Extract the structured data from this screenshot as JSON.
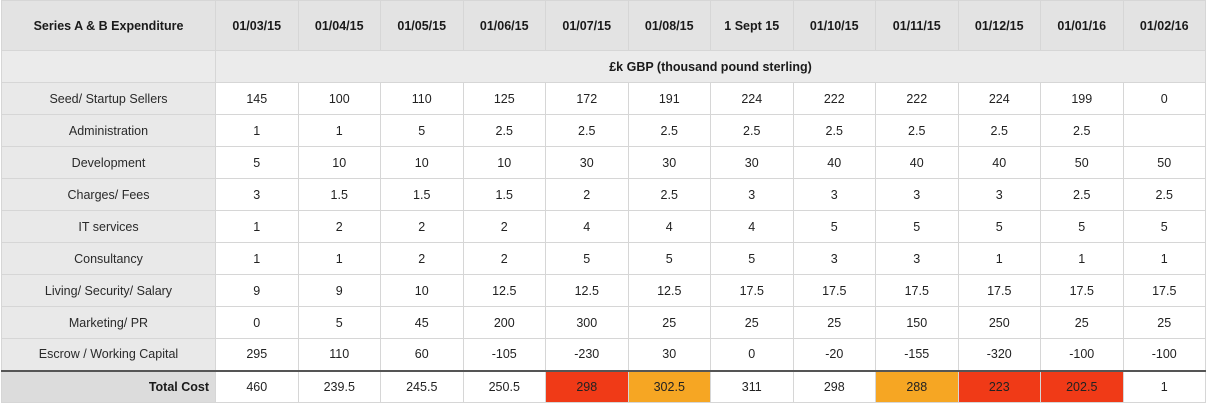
{
  "header": {
    "corner_label": "Series A & B Expenditure",
    "dates": [
      "01/03/15",
      "01/04/15",
      "01/05/15",
      "01/06/15",
      "01/07/15",
      "01/08/15",
      "1 Sept 15",
      "01/10/15",
      "01/11/15",
      "01/12/15",
      "01/01/16",
      "01/02/16"
    ]
  },
  "unit_label": "£k GBP (thousand pound sterling)",
  "rows": [
    {
      "label": "Seed/ Startup Sellers",
      "values": [
        "145",
        "100",
        "110",
        "125",
        "172",
        "191",
        "224",
        "222",
        "222",
        "224",
        "199",
        "0"
      ]
    },
    {
      "label": "Administration",
      "values": [
        "1",
        "1",
        "5",
        "2.5",
        "2.5",
        "2.5",
        "2.5",
        "2.5",
        "2.5",
        "2.5",
        "2.5",
        ""
      ]
    },
    {
      "label": "Development",
      "values": [
        "5",
        "10",
        "10",
        "10",
        "30",
        "30",
        "30",
        "40",
        "40",
        "40",
        "50",
        "50"
      ]
    },
    {
      "label": "Charges/ Fees",
      "values": [
        "3",
        "1.5",
        "1.5",
        "1.5",
        "2",
        "2.5",
        "3",
        "3",
        "3",
        "3",
        "2.5",
        "2.5"
      ]
    },
    {
      "label": "IT services",
      "values": [
        "1",
        "2",
        "2",
        "2",
        "4",
        "4",
        "4",
        "5",
        "5",
        "5",
        "5",
        "5"
      ]
    },
    {
      "label": "Consultancy",
      "values": [
        "1",
        "1",
        "2",
        "2",
        "5",
        "5",
        "5",
        "3",
        "3",
        "1",
        "1",
        "1"
      ]
    },
    {
      "label": "Living/ Security/ Salary",
      "values": [
        "9",
        "9",
        "10",
        "12.5",
        "12.5",
        "12.5",
        "17.5",
        "17.5",
        "17.5",
        "17.5",
        "17.5",
        "17.5"
      ]
    },
    {
      "label": "Marketing/ PR",
      "values": [
        "0",
        "5",
        "45",
        "200",
        "300",
        "25",
        "25",
        "25",
        "150",
        "250",
        "25",
        "25"
      ]
    },
    {
      "label": "Escrow / Working Capital",
      "values": [
        "295",
        "110",
        "60",
        "-105",
        "-230",
        "30",
        "0",
        "-20",
        "-155",
        "-320",
        "-100",
        "-100"
      ]
    }
  ],
  "total": {
    "label": "Total Cost",
    "values": [
      "460",
      "239.5",
      "245.5",
      "250.5",
      "298",
      "302.5",
      "311",
      "298",
      "288",
      "223",
      "202.5",
      "1"
    ],
    "highlights": [
      "",
      "",
      "",
      "",
      "#f03a17",
      "#f6a623",
      "",
      "",
      "#f6a623",
      "#f03a17",
      "#f03a17",
      ""
    ]
  }
}
